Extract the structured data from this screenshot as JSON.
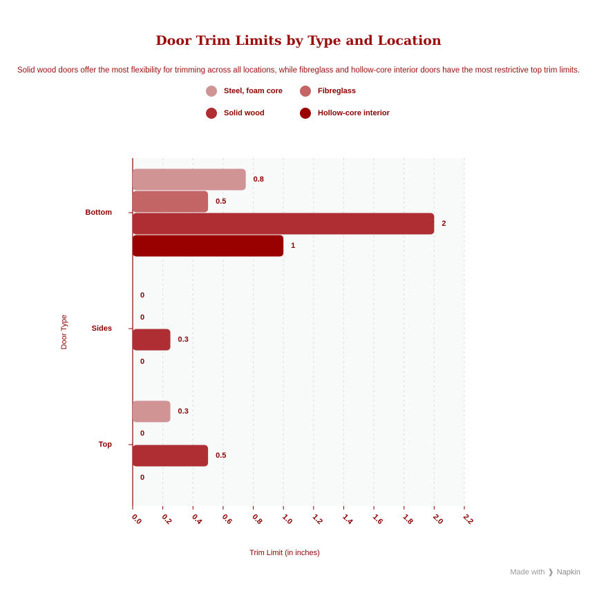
{
  "chart_data": {
    "type": "bar",
    "orientation": "horizontal",
    "title": "Door Trim Limits by Type and Location",
    "subtitle": "Solid wood doors offer the most flexibility for trimming across all locations, while fibreglass and hollow-core interior doors have the most restrictive top trim limits.",
    "xlabel": "Trim Limit (in inches)",
    "ylabel": "Door Type",
    "xlim": [
      0,
      2.2
    ],
    "x_ticks": [
      "0.0",
      "0.2",
      "0.4",
      "0.6",
      "0.8",
      "1.0",
      "1.2",
      "1.4",
      "1.6",
      "1.8",
      "2.0",
      "2.2"
    ],
    "categories": [
      "Bottom",
      "Sides",
      "Top"
    ],
    "series": [
      {
        "name": "Steel, foam core",
        "color": "#d09494",
        "values": [
          0.75,
          0,
          0.25
        ],
        "labels": [
          "0.8",
          "0",
          "0.3"
        ]
      },
      {
        "name": "Fibreglass",
        "color": "#c46565",
        "values": [
          0.5,
          0,
          0
        ],
        "labels": [
          "0.5",
          "0",
          "0"
        ]
      },
      {
        "name": "Solid wood",
        "color": "#ae2e33",
        "values": [
          2,
          0.25,
          0.5
        ],
        "labels": [
          "2",
          "0.3",
          "0.5"
        ]
      },
      {
        "name": "Hollow-core interior",
        "color": "#990000",
        "values": [
          1,
          0,
          0
        ],
        "labels": [
          "1",
          "0",
          "0"
        ]
      }
    ],
    "grid": true,
    "legend_position": "top"
  },
  "colors": {
    "text": "#8b0000",
    "axis": "#8b0000",
    "plot_background": "#f8f9f9"
  },
  "watermark": {
    "prefix": "Made with",
    "brand": "Napkin"
  }
}
